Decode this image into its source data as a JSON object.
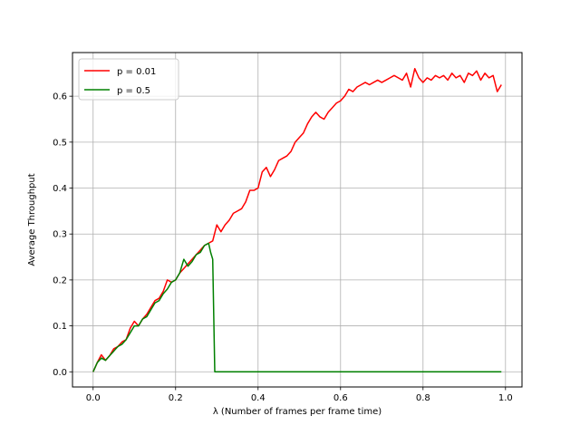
{
  "chart_data": {
    "type": "line",
    "title": "",
    "xlabel": "λ (Number of frames per frame time)",
    "ylabel": "Average Throughput",
    "xlim": [
      -0.05,
      1.04
    ],
    "ylim": [
      -0.033,
      0.695
    ],
    "xticks": [
      0.0,
      0.2,
      0.4,
      0.6,
      0.8,
      1.0
    ],
    "xtick_labels": [
      "0.0",
      "0.2",
      "0.4",
      "0.6",
      "0.8",
      "1.0"
    ],
    "yticks": [
      0.0,
      0.1,
      0.2,
      0.3,
      0.4,
      0.5,
      0.6
    ],
    "ytick_labels": [
      "0.0",
      "0.1",
      "0.2",
      "0.3",
      "0.4",
      "0.5",
      "0.6"
    ],
    "grid": true,
    "legend_position": "top-left",
    "series": [
      {
        "name": "p = 0.01",
        "color": "#ff0000",
        "points": [
          [
            0.0,
            0.0
          ],
          [
            0.01,
            0.02
          ],
          [
            0.02,
            0.037
          ],
          [
            0.03,
            0.025
          ],
          [
            0.04,
            0.035
          ],
          [
            0.05,
            0.05
          ],
          [
            0.06,
            0.055
          ],
          [
            0.07,
            0.065
          ],
          [
            0.08,
            0.07
          ],
          [
            0.09,
            0.095
          ],
          [
            0.1,
            0.11
          ],
          [
            0.11,
            0.1
          ],
          [
            0.12,
            0.115
          ],
          [
            0.13,
            0.125
          ],
          [
            0.14,
            0.14
          ],
          [
            0.15,
            0.155
          ],
          [
            0.16,
            0.16
          ],
          [
            0.17,
            0.175
          ],
          [
            0.18,
            0.2
          ],
          [
            0.19,
            0.195
          ],
          [
            0.2,
            0.2
          ],
          [
            0.21,
            0.215
          ],
          [
            0.22,
            0.225
          ],
          [
            0.23,
            0.235
          ],
          [
            0.24,
            0.245
          ],
          [
            0.25,
            0.255
          ],
          [
            0.26,
            0.265
          ],
          [
            0.27,
            0.275
          ],
          [
            0.28,
            0.28
          ],
          [
            0.29,
            0.285
          ],
          [
            0.3,
            0.32
          ],
          [
            0.31,
            0.305
          ],
          [
            0.32,
            0.32
          ],
          [
            0.33,
            0.33
          ],
          [
            0.34,
            0.345
          ],
          [
            0.35,
            0.35
          ],
          [
            0.36,
            0.355
          ],
          [
            0.37,
            0.37
          ],
          [
            0.38,
            0.395
          ],
          [
            0.39,
            0.395
          ],
          [
            0.4,
            0.4
          ],
          [
            0.41,
            0.435
          ],
          [
            0.42,
            0.445
          ],
          [
            0.43,
            0.425
          ],
          [
            0.44,
            0.44
          ],
          [
            0.45,
            0.46
          ],
          [
            0.46,
            0.465
          ],
          [
            0.47,
            0.47
          ],
          [
            0.48,
            0.48
          ],
          [
            0.49,
            0.5
          ],
          [
            0.5,
            0.51
          ],
          [
            0.51,
            0.52
          ],
          [
            0.52,
            0.54
          ],
          [
            0.53,
            0.555
          ],
          [
            0.54,
            0.565
          ],
          [
            0.55,
            0.555
          ],
          [
            0.56,
            0.55
          ],
          [
            0.57,
            0.565
          ],
          [
            0.58,
            0.575
          ],
          [
            0.59,
            0.585
          ],
          [
            0.6,
            0.59
          ],
          [
            0.61,
            0.6
          ],
          [
            0.62,
            0.615
          ],
          [
            0.63,
            0.61
          ],
          [
            0.64,
            0.62
          ],
          [
            0.65,
            0.625
          ],
          [
            0.66,
            0.63
          ],
          [
            0.67,
            0.625
          ],
          [
            0.68,
            0.63
          ],
          [
            0.69,
            0.635
          ],
          [
            0.7,
            0.63
          ],
          [
            0.71,
            0.635
          ],
          [
            0.72,
            0.64
          ],
          [
            0.73,
            0.645
          ],
          [
            0.74,
            0.64
          ],
          [
            0.75,
            0.635
          ],
          [
            0.76,
            0.65
          ],
          [
            0.77,
            0.62
          ],
          [
            0.78,
            0.66
          ],
          [
            0.79,
            0.64
          ],
          [
            0.8,
            0.63
          ],
          [
            0.81,
            0.64
          ],
          [
            0.82,
            0.635
          ],
          [
            0.83,
            0.645
          ],
          [
            0.84,
            0.64
          ],
          [
            0.85,
            0.645
          ],
          [
            0.86,
            0.635
          ],
          [
            0.87,
            0.65
          ],
          [
            0.88,
            0.64
          ],
          [
            0.89,
            0.645
          ],
          [
            0.9,
            0.63
          ],
          [
            0.91,
            0.65
          ],
          [
            0.92,
            0.645
          ],
          [
            0.93,
            0.655
          ],
          [
            0.94,
            0.635
          ],
          [
            0.95,
            0.65
          ],
          [
            0.96,
            0.64
          ],
          [
            0.97,
            0.645
          ],
          [
            0.98,
            0.61
          ],
          [
            0.99,
            0.625
          ]
        ]
      },
      {
        "name": "p = 0.5",
        "color": "#008000",
        "points": [
          [
            0.0,
            0.0
          ],
          [
            0.01,
            0.02
          ],
          [
            0.02,
            0.03
          ],
          [
            0.03,
            0.025
          ],
          [
            0.04,
            0.035
          ],
          [
            0.05,
            0.045
          ],
          [
            0.06,
            0.055
          ],
          [
            0.07,
            0.06
          ],
          [
            0.08,
            0.07
          ],
          [
            0.09,
            0.085
          ],
          [
            0.1,
            0.1
          ],
          [
            0.11,
            0.1
          ],
          [
            0.12,
            0.115
          ],
          [
            0.13,
            0.12
          ],
          [
            0.14,
            0.135
          ],
          [
            0.15,
            0.15
          ],
          [
            0.16,
            0.155
          ],
          [
            0.17,
            0.17
          ],
          [
            0.18,
            0.18
          ],
          [
            0.19,
            0.195
          ],
          [
            0.2,
            0.2
          ],
          [
            0.21,
            0.215
          ],
          [
            0.22,
            0.245
          ],
          [
            0.23,
            0.23
          ],
          [
            0.24,
            0.24
          ],
          [
            0.25,
            0.255
          ],
          [
            0.26,
            0.26
          ],
          [
            0.27,
            0.275
          ],
          [
            0.28,
            0.28
          ],
          [
            0.285,
            0.26
          ],
          [
            0.29,
            0.245
          ],
          [
            0.295,
            0.0
          ],
          [
            0.3,
            0.0
          ],
          [
            0.4,
            0.0
          ],
          [
            0.5,
            0.0
          ],
          [
            0.6,
            0.0
          ],
          [
            0.7,
            0.0
          ],
          [
            0.8,
            0.0
          ],
          [
            0.9,
            0.0
          ],
          [
            0.99,
            0.0
          ]
        ]
      }
    ]
  }
}
